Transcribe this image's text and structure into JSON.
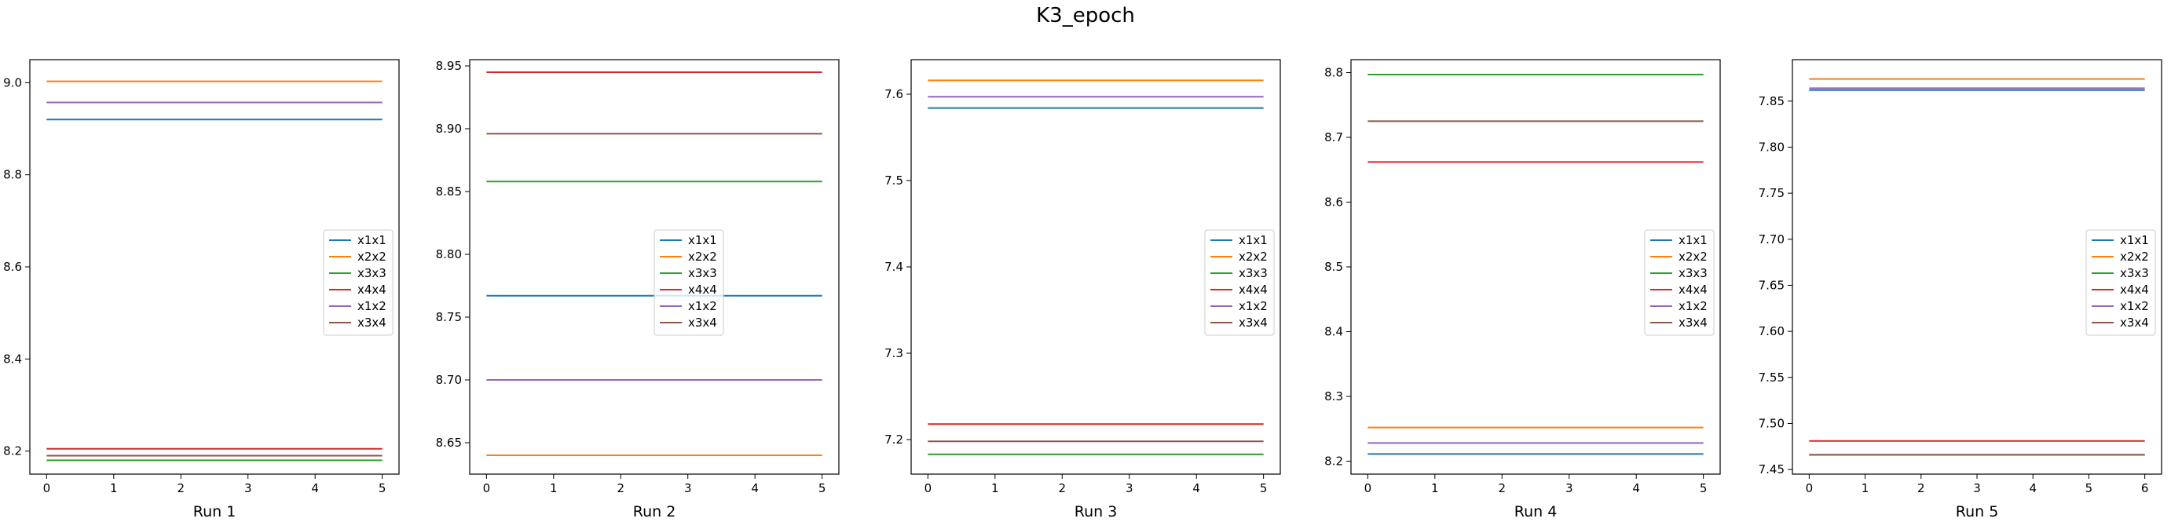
{
  "figure_title": "K3_epoch",
  "chart_data": [
    {
      "type": "line",
      "xlabel": "Run 1",
      "x": [
        0,
        1,
        2,
        3,
        4,
        5
      ],
      "xlim": [
        -0.25,
        5.25
      ],
      "ylim": [
        8.15,
        9.05
      ],
      "xticks": [
        "0",
        "1",
        "2",
        "3",
        "4",
        "5"
      ],
      "yticks": [
        8.2,
        8.4,
        8.6,
        8.8,
        9.0
      ],
      "ytick_labels": [
        "8.2",
        "8.4",
        "8.6",
        "8.8",
        "9.0"
      ],
      "legend_position": "center-right",
      "series": [
        {
          "name": "x1x1",
          "color": "#1f77b4",
          "values": [
            8.92,
            8.92,
            8.92,
            8.92,
            8.92,
            8.92
          ]
        },
        {
          "name": "x2x2",
          "color": "#ff7f0e",
          "values": [
            9.003,
            9.003,
            9.003,
            9.003,
            9.003,
            9.003
          ]
        },
        {
          "name": "x3x3",
          "color": "#2ca02c",
          "values": [
            8.18,
            8.18,
            8.18,
            8.18,
            8.18,
            8.18
          ]
        },
        {
          "name": "x4x4",
          "color": "#d62728",
          "values": [
            8.205,
            8.205,
            8.205,
            8.205,
            8.205,
            8.205
          ]
        },
        {
          "name": "x1x2",
          "color": "#9467bd",
          "values": [
            8.957,
            8.957,
            8.957,
            8.957,
            8.957,
            8.957
          ]
        },
        {
          "name": "x3x4",
          "color": "#8c564b",
          "values": [
            8.19,
            8.19,
            8.19,
            8.19,
            8.19,
            8.19
          ]
        }
      ]
    },
    {
      "type": "line",
      "xlabel": "Run 2",
      "x": [
        0,
        1,
        2,
        3,
        4,
        5
      ],
      "xlim": [
        -0.25,
        5.25
      ],
      "ylim": [
        8.625,
        8.955
      ],
      "xticks": [
        "0",
        "1",
        "2",
        "3",
        "4",
        "5"
      ],
      "yticks": [
        8.65,
        8.7,
        8.75,
        8.8,
        8.85,
        8.9,
        8.95
      ],
      "ytick_labels": [
        "8.65",
        "8.70",
        "8.75",
        "8.80",
        "8.85",
        "8.90",
        "8.95"
      ],
      "legend_position": "center",
      "series": [
        {
          "name": "x1x1",
          "color": "#1f77b4",
          "values": [
            8.767,
            8.767,
            8.767,
            8.767,
            8.767,
            8.767
          ]
        },
        {
          "name": "x2x2",
          "color": "#ff7f0e",
          "values": [
            8.64,
            8.64,
            8.64,
            8.64,
            8.64,
            8.64
          ]
        },
        {
          "name": "x3x3",
          "color": "#2ca02c",
          "values": [
            8.858,
            8.858,
            8.858,
            8.858,
            8.858,
            8.858
          ]
        },
        {
          "name": "x4x4",
          "color": "#d62728",
          "values": [
            8.945,
            8.945,
            8.945,
            8.945,
            8.945,
            8.945
          ]
        },
        {
          "name": "x1x2",
          "color": "#9467bd",
          "values": [
            8.7,
            8.7,
            8.7,
            8.7,
            8.7,
            8.7
          ]
        },
        {
          "name": "x3x4",
          "color": "#8c564b",
          "values": [
            8.896,
            8.896,
            8.896,
            8.896,
            8.896,
            8.896
          ]
        }
      ]
    },
    {
      "type": "line",
      "xlabel": "Run 3",
      "x": [
        0,
        1,
        2,
        3,
        4,
        5
      ],
      "xlim": [
        -0.25,
        5.25
      ],
      "ylim": [
        7.16,
        7.64
      ],
      "xticks": [
        "0",
        "1",
        "2",
        "3",
        "4",
        "5"
      ],
      "yticks": [
        7.2,
        7.3,
        7.4,
        7.5,
        7.6
      ],
      "ytick_labels": [
        "7.2",
        "7.3",
        "7.4",
        "7.5",
        "7.6"
      ],
      "legend_position": "center-right",
      "series": [
        {
          "name": "x1x1",
          "color": "#1f77b4",
          "values": [
            7.584,
            7.584,
            7.584,
            7.584,
            7.584,
            7.584
          ]
        },
        {
          "name": "x2x2",
          "color": "#ff7f0e",
          "values": [
            7.616,
            7.616,
            7.616,
            7.616,
            7.616,
            7.616
          ]
        },
        {
          "name": "x3x3",
          "color": "#2ca02c",
          "values": [
            7.183,
            7.183,
            7.183,
            7.183,
            7.183,
            7.183
          ]
        },
        {
          "name": "x4x4",
          "color": "#d62728",
          "values": [
            7.218,
            7.218,
            7.218,
            7.218,
            7.218,
            7.218
          ]
        },
        {
          "name": "x1x2",
          "color": "#9467bd",
          "values": [
            7.597,
            7.597,
            7.597,
            7.597,
            7.597,
            7.597
          ]
        },
        {
          "name": "x3x4",
          "color": "#8c564b",
          "values": [
            7.198,
            7.198,
            7.198,
            7.198,
            7.198,
            7.198
          ]
        }
      ]
    },
    {
      "type": "line",
      "xlabel": "Run 4",
      "x": [
        0,
        1,
        2,
        3,
        4,
        5
      ],
      "xlim": [
        -0.25,
        5.25
      ],
      "ylim": [
        8.18,
        8.82
      ],
      "xticks": [
        "0",
        "1",
        "2",
        "3",
        "4",
        "5"
      ],
      "yticks": [
        8.2,
        8.3,
        8.4,
        8.5,
        8.6,
        8.7,
        8.8
      ],
      "ytick_labels": [
        "8.2",
        "8.3",
        "8.4",
        "8.5",
        "8.6",
        "8.7",
        "8.8"
      ],
      "legend_position": "center-right",
      "series": [
        {
          "name": "x1x1",
          "color": "#1f77b4",
          "values": [
            8.211,
            8.211,
            8.211,
            8.211,
            8.211,
            8.211
          ]
        },
        {
          "name": "x2x2",
          "color": "#ff7f0e",
          "values": [
            8.252,
            8.252,
            8.252,
            8.252,
            8.252,
            8.252
          ]
        },
        {
          "name": "x3x3",
          "color": "#2ca02c",
          "values": [
            8.797,
            8.797,
            8.797,
            8.797,
            8.797,
            8.797
          ]
        },
        {
          "name": "x4x4",
          "color": "#d62728",
          "values": [
            8.662,
            8.662,
            8.662,
            8.662,
            8.662,
            8.662
          ]
        },
        {
          "name": "x1x2",
          "color": "#9467bd",
          "values": [
            8.228,
            8.228,
            8.228,
            8.228,
            8.228,
            8.228
          ]
        },
        {
          "name": "x3x4",
          "color": "#8c564b",
          "values": [
            8.725,
            8.725,
            8.725,
            8.725,
            8.725,
            8.725
          ]
        }
      ]
    },
    {
      "type": "line",
      "xlabel": "Run 5",
      "x": [
        0,
        1,
        2,
        3,
        4,
        5,
        6
      ],
      "xlim": [
        -0.3,
        6.3
      ],
      "ylim": [
        7.445,
        7.895
      ],
      "xticks": [
        "0",
        "1",
        "2",
        "3",
        "4",
        "5",
        "6"
      ],
      "yticks": [
        7.45,
        7.5,
        7.55,
        7.6,
        7.65,
        7.7,
        7.75,
        7.8,
        7.85
      ],
      "ytick_labels": [
        "7.45",
        "7.50",
        "7.55",
        "7.60",
        "7.65",
        "7.70",
        "7.75",
        "7.80",
        "7.85"
      ],
      "legend_position": "center-right",
      "series": [
        {
          "name": "x1x1",
          "color": "#1f77b4",
          "values": [
            7.862,
            7.862,
            7.862,
            7.862,
            7.862,
            7.862,
            7.862
          ]
        },
        {
          "name": "x2x2",
          "color": "#ff7f0e",
          "values": [
            7.874,
            7.874,
            7.874,
            7.874,
            7.874,
            7.874,
            7.874
          ]
        },
        {
          "name": "x3x3",
          "color": "#2ca02c",
          "values": [
            7.466,
            7.466,
            7.466,
            7.466,
            7.466,
            7.466,
            7.466
          ]
        },
        {
          "name": "x4x4",
          "color": "#d62728",
          "values": [
            7.481,
            7.481,
            7.481,
            7.481,
            7.481,
            7.481,
            7.481
          ]
        },
        {
          "name": "x1x2",
          "color": "#9467bd",
          "values": [
            7.864,
            7.864,
            7.864,
            7.864,
            7.864,
            7.864,
            7.864
          ]
        },
        {
          "name": "x3x4",
          "color": "#8c564b",
          "values": [
            7.466,
            7.466,
            7.466,
            7.466,
            7.466,
            7.466,
            7.466
          ]
        }
      ]
    }
  ]
}
